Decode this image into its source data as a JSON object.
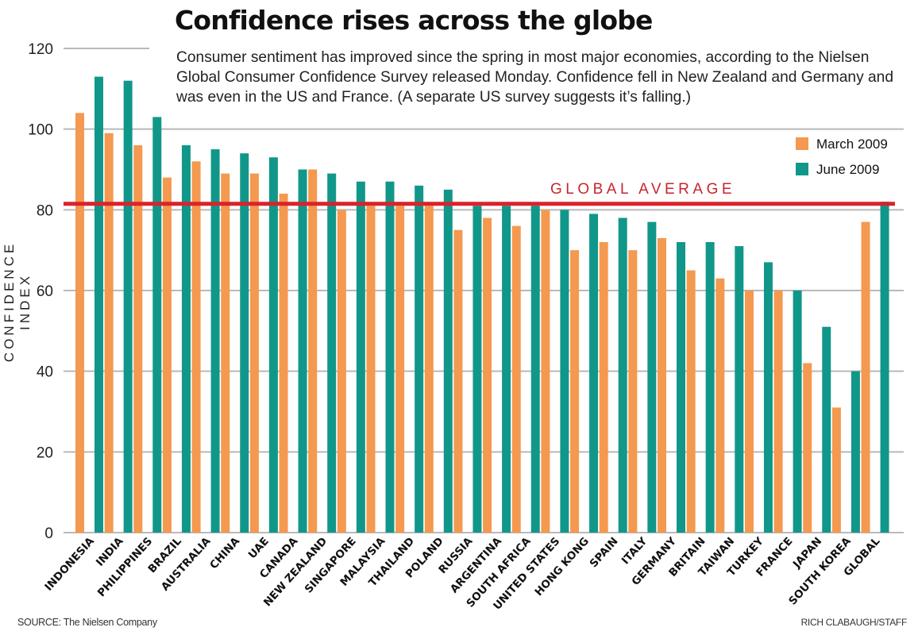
{
  "chart_data": {
    "type": "bar",
    "title": "Confidence rises across the globe",
    "subtitle": "Consumer sentiment has improved since the spring in most major economies, according to the Nielsen Global Consumer Confidence Survey released Monday. Confidence fell in New Zealand and Germany and was even in the US and France. (A separate US survey suggests it’s falling.)",
    "xlabel": "",
    "ylabel": "CONFIDENCE INDEX",
    "ylim": [
      0,
      120
    ],
    "yticks": [
      0,
      20,
      40,
      60,
      80,
      100,
      120
    ],
    "grid": true,
    "legend_position": "top-right",
    "categories": [
      "INDONESIA",
      "INDIA",
      "PHILIPPINES",
      "BRAZIL",
      "AUSTRALIA",
      "CHINA",
      "UAE",
      "CANADA",
      "NEW ZEALAND",
      "SINGAPORE",
      "MALAYSIA",
      "THAILAND",
      "POLAND",
      "RUSSIA",
      "ARGENTINA",
      "SOUTH AFRICA",
      "UNITED STATES",
      "HONG KONG",
      "SPAIN",
      "ITALY",
      "GERMANY",
      "BRITAIN",
      "TAIWAN",
      "TURKEY",
      "FRANCE",
      "JAPAN",
      "SOUTH KOREA",
      "GLOBAL"
    ],
    "series": [
      {
        "name": "March 2009",
        "color": "#f4994f",
        "values": [
          104,
          99,
          96,
          88,
          92,
          89,
          89,
          84,
          90,
          80,
          81,
          81,
          81,
          75,
          78,
          76,
          80,
          70,
          72,
          70,
          73,
          65,
          63,
          60,
          60,
          42,
          31,
          77
        ]
      },
      {
        "name": "June 2009",
        "color": "#11978a",
        "values": [
          113,
          112,
          103,
          96,
          95,
          94,
          93,
          90,
          89,
          87,
          87,
          86,
          85,
          81,
          81,
          81,
          80,
          79,
          78,
          77,
          72,
          72,
          71,
          67,
          60,
          51,
          40,
          82
        ]
      }
    ],
    "reference_line": {
      "label": "GLOBAL AVERAGE",
      "value": 81.5,
      "color": "#d9232b"
    },
    "source": "SOURCE: The Nielsen Company",
    "credit": "RICH CLABAUGH/STAFF"
  },
  "colors": {
    "grid": "#b9b9b9",
    "axis_text": "#222222"
  }
}
